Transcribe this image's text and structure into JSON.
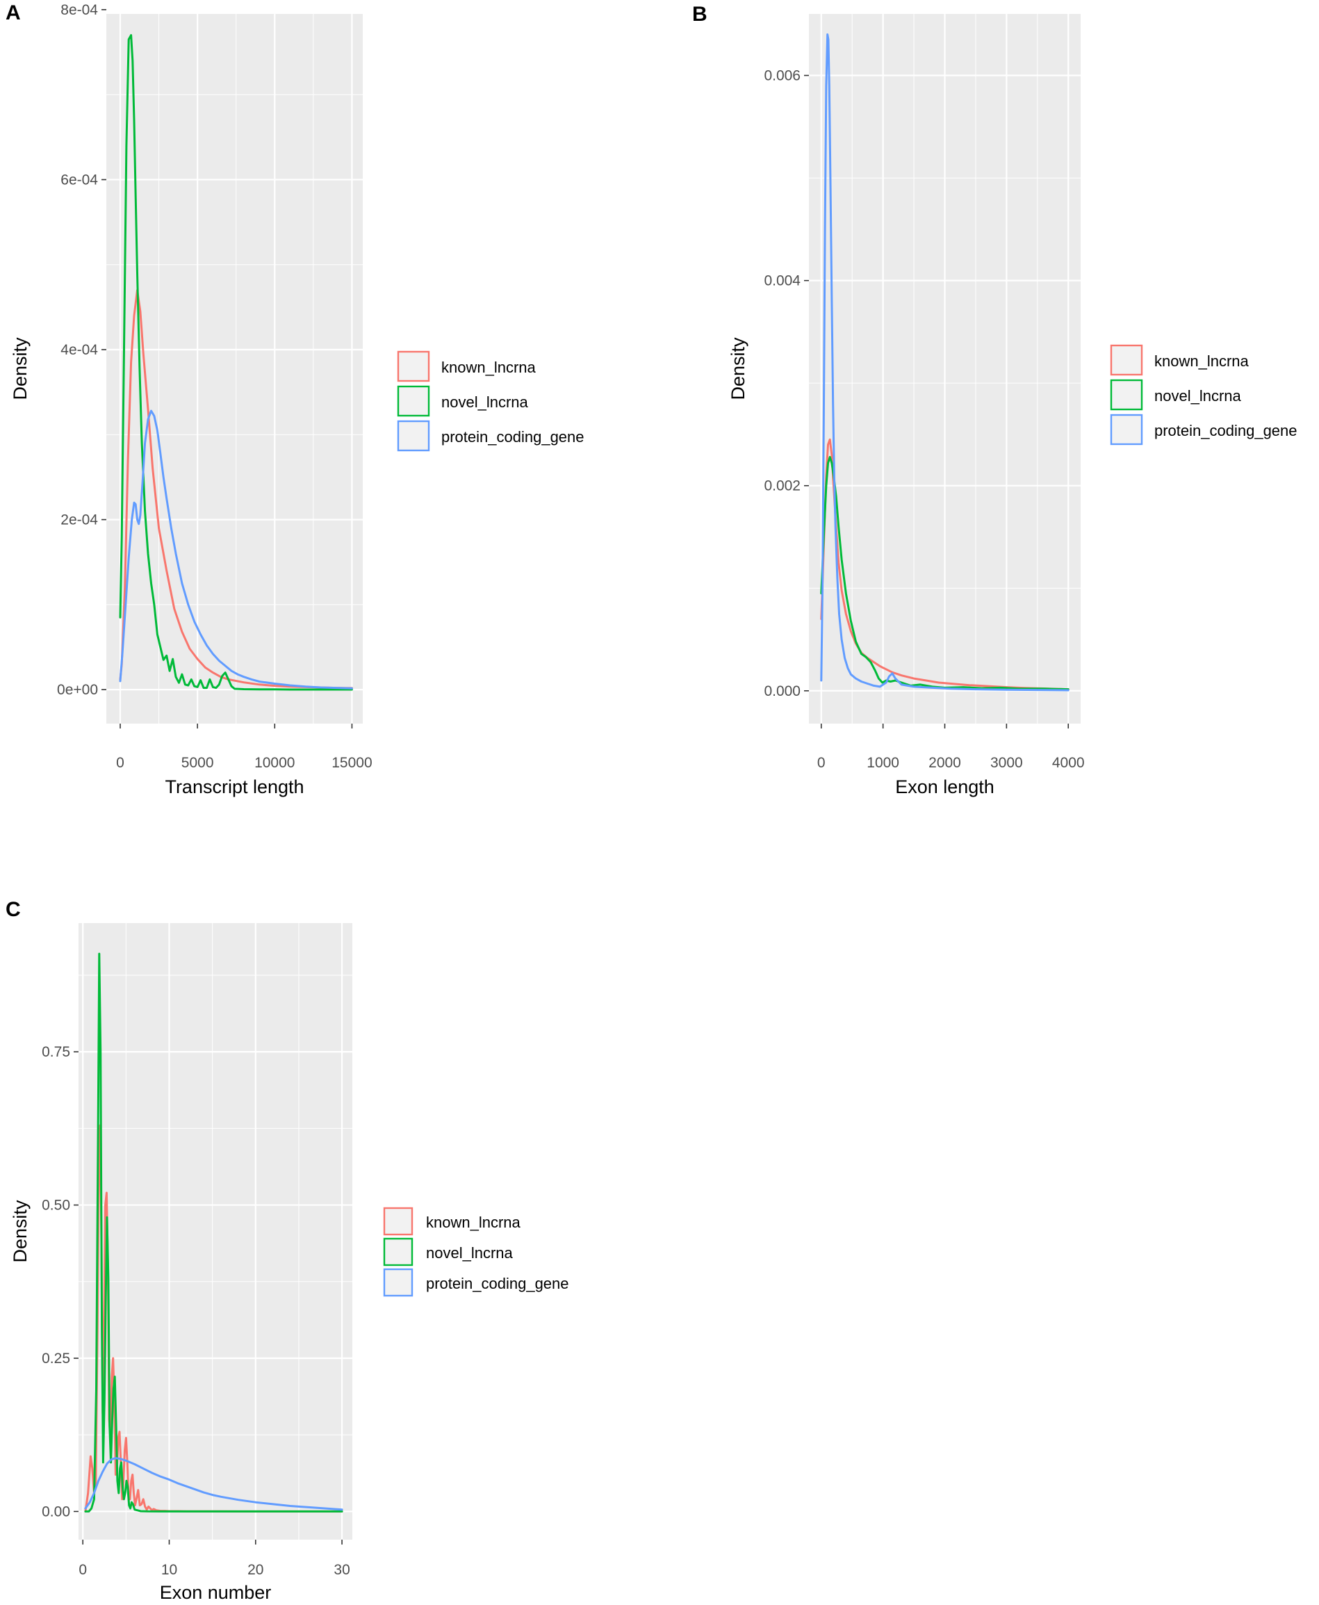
{
  "colors": {
    "known_lncrna": "#f8766d",
    "novel_lncrna": "#00ba38",
    "protein_coding_gene": "#619cff"
  },
  "chart_data": [
    {
      "panel": "A",
      "type": "line",
      "title": "",
      "xlabel": "Transcript length",
      "ylabel": "Density",
      "xlim": [
        -900,
        15700
      ],
      "ylim": [
        -4e-05,
        0.000795
      ],
      "x_ticks": [
        0,
        5000,
        10000,
        15000
      ],
      "x_tick_labels": [
        "0",
        "5000",
        "10000",
        "15000"
      ],
      "y_ticks": [
        0,
        0.0002,
        0.0004,
        0.0006,
        0.0008
      ],
      "y_tick_labels": [
        "0e+00",
        "2e-04",
        "4e-04",
        "6e-04",
        "8e-04"
      ],
      "grid": true,
      "legend": "right",
      "series": [
        {
          "name": "known_lncrna",
          "color_key": "known_lncrna",
          "x": [
            0,
            100,
            300,
            500,
            700,
            900,
            1100,
            1300,
            1500,
            1800,
            2100,
            2500,
            3000,
            3500,
            4000,
            4500,
            5000,
            5500,
            6000,
            6500,
            7000,
            8000,
            9000,
            10000,
            11000,
            12000,
            13000,
            14000,
            15000
          ],
          "y": [
            1.2e-05,
            3e-05,
            0.00012,
            0.00027,
            0.000385,
            0.00044,
            0.00047,
            0.000445,
            0.000395,
            0.00033,
            0.00026,
            0.00019,
            0.00014,
            9.5e-05,
            6.8e-05,
            4.8e-05,
            3.6e-05,
            2.6e-05,
            2e-05,
            1.5e-05,
            1.2e-05,
            8.5e-06,
            6e-06,
            4.5e-06,
            3.5e-06,
            3e-06,
            2.5e-06,
            2e-06,
            1.8e-06
          ]
        },
        {
          "name": "novel_lncrna",
          "color_key": "novel_lncrna",
          "x": [
            0,
            100,
            250,
            400,
            550,
            700,
            800,
            900,
            1000,
            1100,
            1250,
            1400,
            1600,
            1800,
            2000,
            2200,
            2400,
            2600,
            2800,
            3000,
            3200,
            3400,
            3600,
            3800,
            4000,
            4200,
            4400,
            4600,
            4800,
            5000,
            5200,
            5400,
            5600,
            5800,
            6000,
            6200,
            6400,
            6600,
            6800,
            7000,
            7200,
            7400,
            8000,
            9000,
            10000,
            11000,
            12000,
            13000,
            14000,
            15000
          ],
          "y": [
            8.5e-05,
            0.00018,
            0.00041,
            0.00064,
            0.000765,
            0.00077,
            0.00074,
            0.00067,
            0.00058,
            0.00049,
            0.00038,
            0.00029,
            0.00021,
            0.00016,
            0.000125,
            0.0001,
            6.5e-05,
            5e-05,
            3.5e-05,
            4e-05,
            2.2e-05,
            3.6e-05,
            1.5e-05,
            8e-06,
            1.8e-05,
            6e-06,
            5e-06,
            1.2e-05,
            4e-06,
            3e-06,
            1.1e-05,
            2e-06,
            2e-06,
            1.2e-05,
            3e-06,
            2e-06,
            6e-06,
            1.6e-05,
            2e-05,
            1.2e-05,
            4e-06,
            1e-06,
            5e-07,
            3e-07,
            2e-07,
            1e-07,
            1e-07,
            1e-07,
            1e-07,
            1e-07
          ]
        },
        {
          "name": "protein_coding_gene",
          "color_key": "protein_coding_gene",
          "x": [
            0,
            150,
            350,
            550,
            750,
            900,
            1000,
            1100,
            1200,
            1300,
            1450,
            1600,
            1800,
            2000,
            2200,
            2400,
            2600,
            2800,
            3000,
            3300,
            3600,
            4000,
            4400,
            4800,
            5200,
            5600,
            6000,
            6400,
            6800,
            7200,
            7600,
            8000,
            8500,
            9000,
            10000,
            11000,
            12000,
            13000,
            14000,
            15000
          ],
          "y": [
            1e-05,
            4.5e-05,
            0.0001,
            0.000155,
            0.0002,
            0.00022,
            0.000218,
            0.0002,
            0.000195,
            0.000205,
            0.000245,
            0.00029,
            0.000318,
            0.000328,
            0.000322,
            0.000305,
            0.000278,
            0.00025,
            0.000225,
            0.00019,
            0.00016,
            0.000125,
            0.0001,
            8e-05,
            6.5e-05,
            5.2e-05,
            4.2e-05,
            3.4e-05,
            2.8e-05,
            2.2e-05,
            1.8e-05,
            1.5e-05,
            1.2e-05,
            9.5e-06,
            7e-06,
            5e-06,
            3.5e-06,
            2.5e-06,
            2e-06,
            1.5e-06
          ]
        }
      ]
    },
    {
      "panel": "B",
      "type": "line",
      "title": "",
      "xlabel": "Exon length",
      "ylabel": "Density",
      "xlim": [
        -200,
        4200
      ],
      "ylim": [
        -0.00032,
        0.0066
      ],
      "x_ticks": [
        0,
        1000,
        2000,
        3000,
        4000
      ],
      "x_tick_labels": [
        "0",
        "1000",
        "2000",
        "3000",
        "4000"
      ],
      "y_ticks": [
        0,
        0.002,
        0.004,
        0.006
      ],
      "y_tick_labels": [
        "0.000",
        "0.002",
        "0.004",
        "0.006"
      ],
      "grid": true,
      "legend": "right",
      "series": [
        {
          "name": "known_lncrna",
          "color_key": "known_lncrna",
          "x": [
            0,
            40,
            80,
            110,
            140,
            170,
            200,
            240,
            280,
            330,
            400,
            480,
            560,
            650,
            750,
            850,
            950,
            1050,
            1150,
            1300,
            1500,
            1700,
            1900,
            2100,
            2400,
            2700,
            3000,
            3300,
            3600,
            4000
          ],
          "y": [
            0.0007,
            0.0014,
            0.0021,
            0.0024,
            0.00245,
            0.0023,
            0.002,
            0.0016,
            0.00125,
            0.00098,
            0.00075,
            0.00058,
            0.00046,
            0.00037,
            0.00032,
            0.00028,
            0.00024,
            0.00021,
            0.00018,
            0.00015,
            0.00012,
            0.0001,
            8e-05,
            7e-05,
            5.5e-05,
            4.5e-05,
            3.5e-05,
            2.8e-05,
            2.2e-05,
            1.5e-05
          ]
        },
        {
          "name": "novel_lncrna",
          "color_key": "novel_lncrna",
          "x": [
            0,
            40,
            80,
            110,
            140,
            170,
            200,
            240,
            280,
            330,
            400,
            480,
            560,
            650,
            720,
            800,
            870,
            930,
            990,
            1050,
            1120,
            1200,
            1300,
            1450,
            1600,
            1800,
            2000,
            2300,
            2600,
            2900,
            3200,
            3600,
            4000
          ],
          "y": [
            0.00095,
            0.0015,
            0.002,
            0.00222,
            0.00228,
            0.00222,
            0.0021,
            0.0019,
            0.0016,
            0.00128,
            0.00095,
            0.00068,
            0.00048,
            0.00036,
            0.00033,
            0.00028,
            0.0002,
            0.00012,
            8e-05,
            0.0001,
            9e-05,
            0.0001,
            8e-05,
            5e-05,
            6e-05,
            4e-05,
            3e-05,
            3.5e-05,
            2.5e-05,
            3e-05,
            2e-05,
            2e-05,
            1.5e-05
          ]
        },
        {
          "name": "protein_coding_gene",
          "color_key": "protein_coding_gene",
          "x": [
            0,
            20,
            40,
            60,
            80,
            100,
            115,
            130,
            150,
            170,
            190,
            210,
            230,
            260,
            290,
            330,
            380,
            430,
            480,
            560,
            650,
            750,
            850,
            950,
            1050,
            1100,
            1150,
            1200,
            1300,
            1500,
            1800,
            2100,
            2500,
            3000,
            3500,
            4000
          ],
          "y": [
            0.0001,
            0.001,
            0.0026,
            0.0045,
            0.0059,
            0.0064,
            0.00635,
            0.0059,
            0.0049,
            0.0038,
            0.0028,
            0.0021,
            0.0016,
            0.0011,
            0.00075,
            0.0005,
            0.00032,
            0.00022,
            0.00016,
            0.00012,
            9e-05,
            7e-05,
            5e-05,
            4e-05,
            8e-05,
            0.00014,
            0.00017,
            0.00012,
            6e-05,
            4e-05,
            3e-05,
            2e-05,
            1.5e-05,
            1e-05,
            8e-06,
            5e-06
          ]
        }
      ]
    },
    {
      "panel": "C",
      "type": "line",
      "title": "",
      "xlabel": "Exon number",
      "ylabel": "Density",
      "xlim": [
        -0.5,
        31.2
      ],
      "ylim": [
        -0.046,
        0.96
      ],
      "x_ticks": [
        0,
        10,
        20,
        30
      ],
      "x_tick_labels": [
        "0",
        "10",
        "20",
        "30"
      ],
      "y_ticks": [
        0,
        0.25,
        0.5,
        0.75
      ],
      "y_tick_labels": [
        "0.00",
        "0.25",
        "0.50",
        "0.75"
      ],
      "grid": true,
      "legend": "right",
      "series": [
        {
          "name": "known_lncrna",
          "color_key": "known_lncrna",
          "x": [
            0.3,
            0.6,
            0.9,
            1.1,
            1.3,
            1.5,
            1.7,
            1.85,
            2.0,
            2.15,
            2.3,
            2.45,
            2.6,
            2.75,
            2.9,
            3.05,
            3.2,
            3.35,
            3.5,
            3.65,
            3.8,
            3.95,
            4.1,
            4.25,
            4.4,
            4.55,
            4.7,
            4.85,
            5.0,
            5.15,
            5.3,
            5.45,
            5.6,
            5.75,
            5.9,
            6.05,
            6.2,
            6.4,
            6.6,
            6.8,
            7.0,
            7.2,
            7.4,
            7.6,
            7.8,
            8.0,
            8.2,
            8.5,
            9.0,
            9.5,
            10,
            11,
            12,
            14,
            16,
            18,
            20,
            22,
            24,
            26,
            28,
            30
          ],
          "y": [
            0.0,
            0.03,
            0.09,
            0.07,
            0.03,
            0.05,
            0.3,
            0.55,
            0.63,
            0.45,
            0.16,
            0.3,
            0.5,
            0.52,
            0.4,
            0.15,
            0.12,
            0.22,
            0.25,
            0.18,
            0.06,
            0.07,
            0.12,
            0.13,
            0.08,
            0.02,
            0.05,
            0.1,
            0.12,
            0.08,
            0.02,
            0.02,
            0.05,
            0.06,
            0.03,
            0.01,
            0.02,
            0.035,
            0.01,
            0.012,
            0.02,
            0.008,
            0.003,
            0.008,
            0.005,
            0.002,
            0.004,
            0.002,
            0.001,
            0.001,
            0.0005,
            0.0005,
            0.0003,
            0.0002,
            0.0002,
            0.0001,
            0.0001,
            0.0001,
            0.0001,
            0.0001,
            0.0001,
            0.0001
          ]
        },
        {
          "name": "novel_lncrna",
          "color_key": "novel_lncrna",
          "x": [
            0.3,
            0.7,
            1.0,
            1.3,
            1.55,
            1.75,
            1.9,
            2.05,
            2.2,
            2.35,
            2.5,
            2.65,
            2.8,
            2.95,
            3.1,
            3.25,
            3.4,
            3.55,
            3.7,
            3.85,
            4.0,
            4.15,
            4.3,
            4.45,
            4.6,
            4.75,
            4.9,
            5.05,
            5.2,
            5.35,
            5.5,
            5.65,
            5.8,
            6.0,
            6.3,
            6.7,
            7.5,
            9,
            12,
            15,
            20,
            25,
            30
          ],
          "y": [
            0.0,
            0.0,
            0.005,
            0.02,
            0.2,
            0.6,
            0.91,
            0.75,
            0.3,
            0.08,
            0.18,
            0.35,
            0.48,
            0.38,
            0.14,
            0.08,
            0.15,
            0.2,
            0.22,
            0.14,
            0.05,
            0.03,
            0.07,
            0.08,
            0.04,
            0.02,
            0.03,
            0.05,
            0.04,
            0.01,
            0.005,
            0.015,
            0.012,
            0.003,
            0.002,
            0.0005,
            0.0002,
            0.0001,
            0.0001,
            0.0001,
            0.0001,
            0.0001,
            0.0001
          ]
        },
        {
          "name": "protein_coding_gene",
          "color_key": "protein_coding_gene",
          "x": [
            0.3,
            0.8,
            1.3,
            1.8,
            2.3,
            2.8,
            3.3,
            3.8,
            4.3,
            5,
            6,
            7,
            8,
            9,
            10,
            11,
            12,
            13,
            14,
            15,
            16,
            18,
            20,
            22,
            24,
            26,
            28,
            30
          ],
          "y": [
            0.005,
            0.015,
            0.03,
            0.05,
            0.065,
            0.078,
            0.085,
            0.087,
            0.086,
            0.083,
            0.077,
            0.07,
            0.063,
            0.057,
            0.052,
            0.046,
            0.041,
            0.036,
            0.031,
            0.027,
            0.024,
            0.019,
            0.015,
            0.012,
            0.009,
            0.007,
            0.005,
            0.003
          ]
        }
      ]
    }
  ]
}
